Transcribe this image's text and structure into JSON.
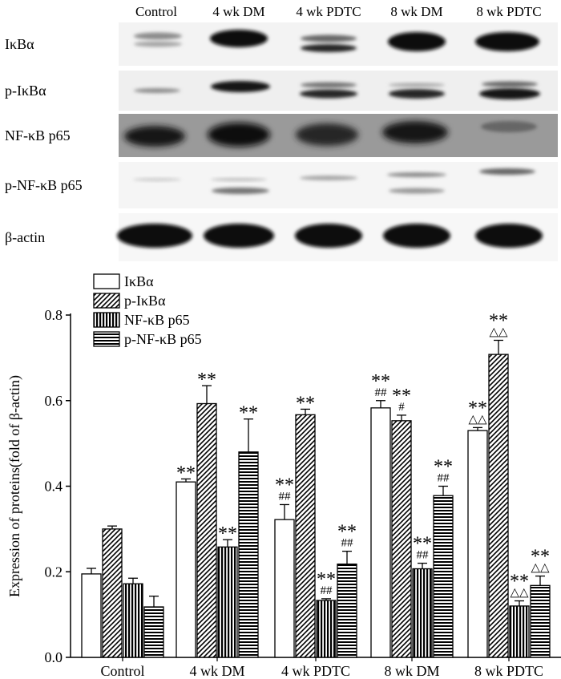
{
  "blot": {
    "lanes": [
      "Control",
      "4 wk DM",
      "4 wk PDTC",
      "8 wk DM",
      "8 wk PDTC"
    ],
    "rows": [
      {
        "label": "IκBα"
      },
      {
        "label": "p-IκBα"
      },
      {
        "label": "NF-κB p65"
      },
      {
        "label": "p-NF-κB p65"
      },
      {
        "label": "β-actin"
      }
    ]
  },
  "chart_data": {
    "type": "bar",
    "categories": [
      "Control",
      "4 wk DM",
      "4 wk PDTC",
      "8 wk DM",
      "8 wk PDTC"
    ],
    "ylabel": "Expression of proteins(fold of β-actin)",
    "ylim": [
      0,
      0.8
    ],
    "yticks": [
      "0.0",
      "0.2",
      "0.4",
      "0.6",
      "0.8"
    ],
    "legend_position": "top-left",
    "series": [
      {
        "name": "IκBα",
        "pattern": "open",
        "values": [
          0.195,
          0.41,
          0.322,
          0.583,
          0.53
        ],
        "errors": [
          0.013,
          0.007,
          0.035,
          0.017,
          0.007
        ],
        "annotations": [
          [],
          [
            "**"
          ],
          [
            "**",
            "##"
          ],
          [
            "**",
            "##"
          ],
          [
            "**",
            "△△"
          ]
        ]
      },
      {
        "name": "p-IκBα",
        "pattern": "diagonal",
        "values": [
          0.3,
          0.593,
          0.567,
          0.553,
          0.708
        ],
        "errors": [
          0.007,
          0.042,
          0.013,
          0.013,
          0.033
        ],
        "annotations": [
          [],
          [
            "**"
          ],
          [
            "**"
          ],
          [
            "**",
            "#"
          ],
          [
            "**",
            "△△"
          ]
        ]
      },
      {
        "name": "NF-κB p65",
        "pattern": "vertical",
        "values": [
          0.172,
          0.258,
          0.133,
          0.207,
          0.12
        ],
        "errors": [
          0.013,
          0.017,
          0.004,
          0.013,
          0.012
        ],
        "annotations": [
          [],
          [
            "**"
          ],
          [
            "**",
            "##"
          ],
          [
            "**",
            "##"
          ],
          [
            "**",
            "△△"
          ]
        ]
      },
      {
        "name": "p-NF-κB p65",
        "pattern": "horizontal",
        "values": [
          0.118,
          0.48,
          0.218,
          0.378,
          0.168
        ],
        "errors": [
          0.025,
          0.077,
          0.03,
          0.022,
          0.022
        ],
        "annotations": [
          [],
          [
            "**"
          ],
          [
            "**",
            "##"
          ],
          [
            "**",
            "##"
          ],
          [
            "**",
            "△△"
          ]
        ]
      }
    ]
  }
}
